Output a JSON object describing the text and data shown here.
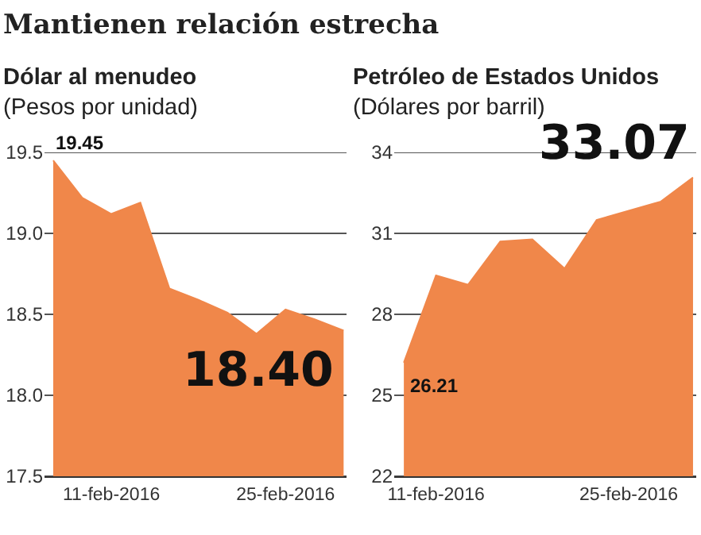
{
  "chart_data": [
    {
      "type": "other",
      "title": "Mantienen relación estrecha"
    },
    {
      "type": "area",
      "title": "Dólar al menudeo",
      "subtitle": "(Pesos por unidad)",
      "categories": [
        null,
        null,
        "11-feb-2016",
        null,
        null,
        null,
        null,
        null,
        "25-feb-2016",
        null,
        null
      ],
      "series": [
        {
          "color": "#f0874a",
          "values": [
            19.45,
            19.22,
            19.12,
            19.19,
            18.66,
            18.59,
            18.51,
            18.38,
            18.53,
            18.47,
            18.4
          ],
          "value_labels": [
            "19.45",
            null,
            null,
            null,
            null,
            null,
            null,
            null,
            null,
            null,
            "18.40"
          ]
        }
      ],
      "ylim": [
        17.5,
        19.5
      ],
      "yticks": [
        {
          "value": 17.5,
          "label": "17.5"
        },
        {
          "value": 18,
          "label": "18.0"
        },
        {
          "value": 18.5,
          "label": "18.5"
        },
        {
          "value": 19,
          "label": "19.0"
        },
        {
          "value": 19.5,
          "label": "19.5"
        }
      ],
      "grid": "y"
    },
    {
      "type": "area",
      "title": "Petróleo de Estados Unidos",
      "subtitle": "(Dólares por barril)",
      "categories": [
        null,
        "11-feb-2016",
        null,
        null,
        null,
        null,
        null,
        "25-feb-2016",
        null,
        null
      ],
      "series": [
        {
          "color": "#f0874a",
          "values": [
            26.21,
            29.44,
            29.1,
            30.7,
            30.78,
            29.7,
            31.5,
            31.84,
            32.18,
            33.07
          ],
          "value_labels": [
            "26.21",
            null,
            null,
            null,
            null,
            null,
            null,
            null,
            null,
            "33.07"
          ]
        }
      ],
      "ylim": [
        22,
        34
      ],
      "yticks": [
        22,
        25,
        28,
        31,
        34
      ],
      "grid": "y"
    }
  ]
}
